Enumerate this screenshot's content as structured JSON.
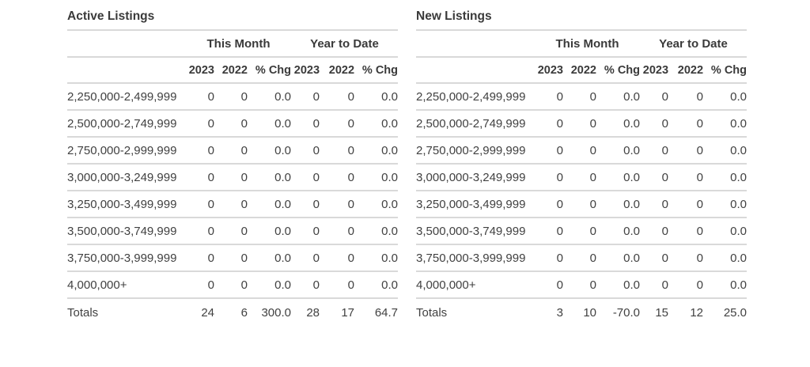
{
  "colors": {
    "text": "#414141",
    "title": "#3a3a3a",
    "line": "#d9d9d9",
    "background": "#ffffff"
  },
  "tables": [
    {
      "id": "active-listings",
      "title": "Active Listings",
      "group_headers": [
        "This Month",
        "Year to Date"
      ],
      "column_headers": [
        "2023",
        "2022",
        "% Chg",
        "2023",
        "2022",
        "% Chg"
      ],
      "rows": [
        {
          "label": "2,250,000-2,499,999",
          "values": [
            "0",
            "0",
            "0.0",
            "0",
            "0",
            "0.0"
          ]
        },
        {
          "label": "2,500,000-2,749,999",
          "values": [
            "0",
            "0",
            "0.0",
            "0",
            "0",
            "0.0"
          ]
        },
        {
          "label": "2,750,000-2,999,999",
          "values": [
            "0",
            "0",
            "0.0",
            "0",
            "0",
            "0.0"
          ]
        },
        {
          "label": "3,000,000-3,249,999",
          "values": [
            "0",
            "0",
            "0.0",
            "0",
            "0",
            "0.0"
          ]
        },
        {
          "label": "3,250,000-3,499,999",
          "values": [
            "0",
            "0",
            "0.0",
            "0",
            "0",
            "0.0"
          ]
        },
        {
          "label": "3,500,000-3,749,999",
          "values": [
            "0",
            "0",
            "0.0",
            "0",
            "0",
            "0.0"
          ]
        },
        {
          "label": "3,750,000-3,999,999",
          "values": [
            "0",
            "0",
            "0.0",
            "0",
            "0",
            "0.0"
          ]
        },
        {
          "label": "4,000,000+",
          "values": [
            "0",
            "0",
            "0.0",
            "0",
            "0",
            "0.0"
          ]
        }
      ],
      "totals": {
        "label": "Totals",
        "values": [
          "24",
          "6",
          "300.0",
          "28",
          "17",
          "64.7"
        ]
      }
    },
    {
      "id": "new-listings",
      "title": "New Listings",
      "group_headers": [
        "This Month",
        "Year to Date"
      ],
      "column_headers": [
        "2023",
        "2022",
        "% Chg",
        "2023",
        "2022",
        "% Chg"
      ],
      "rows": [
        {
          "label": "2,250,000-2,499,999",
          "values": [
            "0",
            "0",
            "0.0",
            "0",
            "0",
            "0.0"
          ]
        },
        {
          "label": "2,500,000-2,749,999",
          "values": [
            "0",
            "0",
            "0.0",
            "0",
            "0",
            "0.0"
          ]
        },
        {
          "label": "2,750,000-2,999,999",
          "values": [
            "0",
            "0",
            "0.0",
            "0",
            "0",
            "0.0"
          ]
        },
        {
          "label": "3,000,000-3,249,999",
          "values": [
            "0",
            "0",
            "0.0",
            "0",
            "0",
            "0.0"
          ]
        },
        {
          "label": "3,250,000-3,499,999",
          "values": [
            "0",
            "0",
            "0.0",
            "0",
            "0",
            "0.0"
          ]
        },
        {
          "label": "3,500,000-3,749,999",
          "values": [
            "0",
            "0",
            "0.0",
            "0",
            "0",
            "0.0"
          ]
        },
        {
          "label": "3,750,000-3,999,999",
          "values": [
            "0",
            "0",
            "0.0",
            "0",
            "0",
            "0.0"
          ]
        },
        {
          "label": "4,000,000+",
          "values": [
            "0",
            "0",
            "0.0",
            "0",
            "0",
            "0.0"
          ]
        }
      ],
      "totals": {
        "label": "Totals",
        "values": [
          "3",
          "10",
          "-70.0",
          "15",
          "12",
          "25.0"
        ]
      }
    }
  ]
}
